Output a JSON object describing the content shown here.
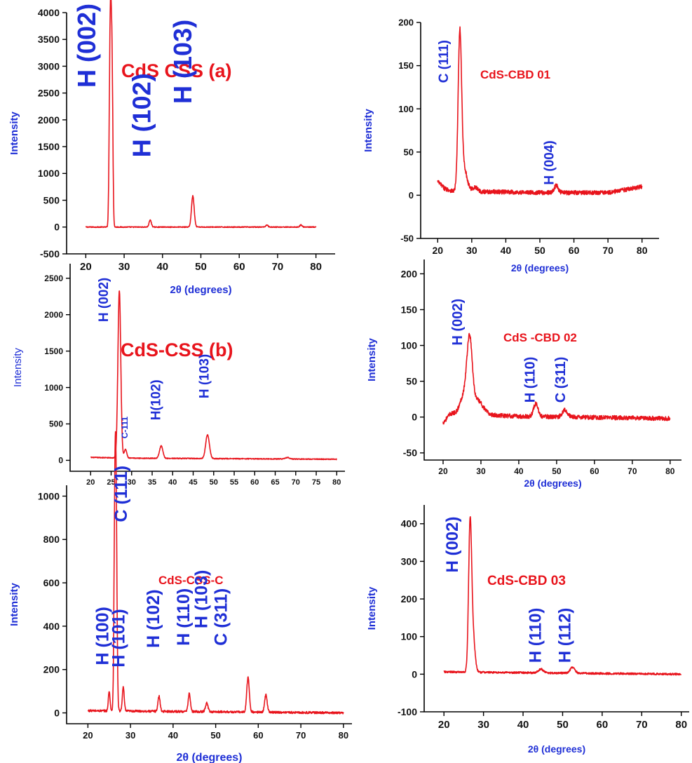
{
  "colors": {
    "curve": "#e8141c",
    "axis_text": "#1f2fd6",
    "peak_label": "#1f2fd6",
    "title": "#e8141c",
    "frame": "#000000"
  },
  "chart_data": [
    {
      "id": "css-a",
      "type": "line",
      "title": "CdS CSS (a)",
      "xlabel": "2θ (degrees)",
      "ylabel": "Intensity",
      "xlim": [
        15,
        85
      ],
      "ylim": [
        -500,
        4000
      ],
      "xticks": [
        20,
        30,
        40,
        50,
        60,
        70,
        80
      ],
      "yticks": [
        -500,
        0,
        500,
        1000,
        1500,
        2000,
        2500,
        3000,
        3500,
        4000
      ],
      "peaks": [
        [
          26.5,
          3700,
          0.25
        ],
        [
          26.9,
          2100,
          0.2
        ],
        [
          26.2,
          1100,
          0.2
        ],
        [
          36.8,
          130,
          0.3
        ],
        [
          47.9,
          580,
          0.35
        ],
        [
          67.2,
          40,
          0.3
        ],
        [
          76.1,
          40,
          0.3
        ]
      ],
      "baseline": [
        [
          20,
          0
        ],
        [
          80,
          0
        ]
      ],
      "noise": 8,
      "labels": [
        {
          "text": "H (002)",
          "x": 22.5,
          "y": 2600
        },
        {
          "text": "H (102)",
          "x": 36.8,
          "y": 1300
        },
        {
          "text": "H (103)",
          "x": 47.5,
          "y": 2300
        }
      ]
    },
    {
      "id": "css-b",
      "type": "line",
      "title": "CdS-CSS (b)",
      "xlabel": "",
      "ylabel": "Intensity",
      "xlim": [
        15,
        82
      ],
      "ylim": [
        -150,
        2700
      ],
      "xticks": [
        20,
        25,
        30,
        35,
        40,
        45,
        50,
        55,
        60,
        65,
        70,
        75,
        80
      ],
      "yticks": [
        0,
        500,
        1000,
        1500,
        2000,
        2500
      ],
      "peaks": [
        [
          27.0,
          2300,
          0.35
        ],
        [
          28.5,
          120,
          0.3
        ],
        [
          37.2,
          170,
          0.4
        ],
        [
          48.5,
          330,
          0.45
        ],
        [
          68.0,
          20,
          0.5
        ]
      ],
      "baseline": [
        [
          20,
          40
        ],
        [
          30,
          30
        ],
        [
          80,
          15
        ]
      ],
      "noise": 6,
      "labels": [
        {
          "text": "H (002)",
          "x": 24.2,
          "y": 1900
        },
        {
          "text": "C-111",
          "x": 29.0,
          "y": 300
        },
        {
          "text": "H(102)",
          "x": 37.0,
          "y": 550
        },
        {
          "text": "H (103)",
          "x": 48.8,
          "y": 850
        }
      ]
    },
    {
      "id": "css-c",
      "type": "line",
      "title": "CdS-CSS-C",
      "xlabel": "2θ (degrees)",
      "ylabel": "Intensity",
      "xlim": [
        15,
        82
      ],
      "ylim": [
        -50,
        1050
      ],
      "xticks": [
        20,
        30,
        40,
        50,
        60,
        70,
        80
      ],
      "yticks": [
        0,
        200,
        400,
        600,
        800,
        1000
      ],
      "peaks": [
        [
          25.0,
          90,
          0.2
        ],
        [
          26.6,
          950,
          0.22
        ],
        [
          26.3,
          700,
          0.2
        ],
        [
          28.3,
          110,
          0.22
        ],
        [
          36.7,
          70,
          0.25
        ],
        [
          43.8,
          85,
          0.25
        ],
        [
          47.9,
          40,
          0.3
        ],
        [
          57.6,
          160,
          0.3
        ],
        [
          61.8,
          80,
          0.3
        ]
      ],
      "baseline": [
        [
          20,
          10
        ],
        [
          80,
          0
        ]
      ],
      "noise": 5,
      "labels": [
        {
          "text": "H (100)",
          "x": 24.8,
          "y": 220
        },
        {
          "text": "C (111)",
          "x": 29.2,
          "y": 880
        },
        {
          "text": "H (101)",
          "x": 28.6,
          "y": 210
        },
        {
          "text": "H (102)",
          "x": 36.7,
          "y": 300
        },
        {
          "text": "H (110)",
          "x": 43.8,
          "y": 310
        },
        {
          "text": "H (103)",
          "x": 48.0,
          "y": 390
        },
        {
          "text": "C (311)",
          "x": 52.6,
          "y": 310
        }
      ]
    },
    {
      "id": "cbd-01",
      "type": "line",
      "title": "CdS-CBD 01",
      "xlabel": "2θ (degrees)",
      "ylabel": "Intensity",
      "xlim": [
        15,
        85
      ],
      "ylim": [
        -50,
        200
      ],
      "xticks": [
        20,
        30,
        40,
        50,
        60,
        70,
        80
      ],
      "yticks": [
        -50,
        0,
        50,
        100,
        150,
        200
      ],
      "peaks": [
        [
          26.5,
          170,
          0.5
        ],
        [
          27.5,
          30,
          1.0
        ],
        [
          31.0,
          5,
          0.8
        ],
        [
          54.8,
          8,
          0.6
        ]
      ],
      "baseline": [
        [
          20,
          16
        ],
        [
          22,
          8
        ],
        [
          25,
          4
        ],
        [
          35,
          4
        ],
        [
          50,
          3
        ],
        [
          70,
          3
        ],
        [
          80,
          10
        ]
      ],
      "noise": 2.5,
      "labels": [
        {
          "text": "C (111)",
          "x": 23.0,
          "y": 130
        },
        {
          "text": "H (004)",
          "x": 54.0,
          "y": 12
        }
      ]
    },
    {
      "id": "cbd-02",
      "type": "line",
      "title": "CdS -CBD 02",
      "xlabel": "2θ (degrees)",
      "ylabel": "Intensity",
      "xlim": [
        15,
        83
      ],
      "ylim": [
        -60,
        220
      ],
      "xticks": [
        20,
        30,
        40,
        50,
        60,
        70,
        80
      ],
      "yticks": [
        -50,
        0,
        50,
        100,
        150,
        200
      ],
      "peaks": [
        [
          27.0,
          95,
          0.7
        ],
        [
          25.5,
          25,
          1.0
        ],
        [
          29.0,
          20,
          1.5
        ],
        [
          44.5,
          18,
          0.6
        ],
        [
          52.2,
          10,
          0.7
        ]
      ],
      "baseline": [
        [
          20,
          -8
        ],
        [
          22,
          5
        ],
        [
          40,
          1
        ],
        [
          80,
          -2
        ]
      ],
      "noise": 3,
      "labels": [
        {
          "text": "H (002)",
          "x": 25.0,
          "y": 100
        },
        {
          "text": "H (110)",
          "x": 44.2,
          "y": 20
        },
        {
          "text": "C (311)",
          "x": 52.2,
          "y": 20
        }
      ]
    },
    {
      "id": "cbd-03",
      "type": "line",
      "title": "CdS-CBD 03",
      "xlabel": "2θ (degrees)",
      "ylabel": "Intensity",
      "xlim": [
        15,
        82
      ],
      "ylim": [
        -100,
        450
      ],
      "xticks": [
        20,
        30,
        40,
        50,
        60,
        70,
        80
      ],
      "yticks": [
        -100,
        0,
        100,
        200,
        300,
        400
      ],
      "peaks": [
        [
          26.6,
          375,
          0.38
        ],
        [
          27.3,
          100,
          0.5
        ],
        [
          44.5,
          10,
          0.6
        ],
        [
          52.5,
          15,
          0.6
        ]
      ],
      "baseline": [
        [
          20,
          6
        ],
        [
          80,
          0
        ]
      ],
      "noise": 2.5,
      "labels": [
        {
          "text": "H (002)",
          "x": 23.5,
          "y": 270
        },
        {
          "text": "H (110)",
          "x": 44.5,
          "y": 30
        },
        {
          "text": "H (112)",
          "x": 52.0,
          "y": 30
        }
      ]
    }
  ]
}
